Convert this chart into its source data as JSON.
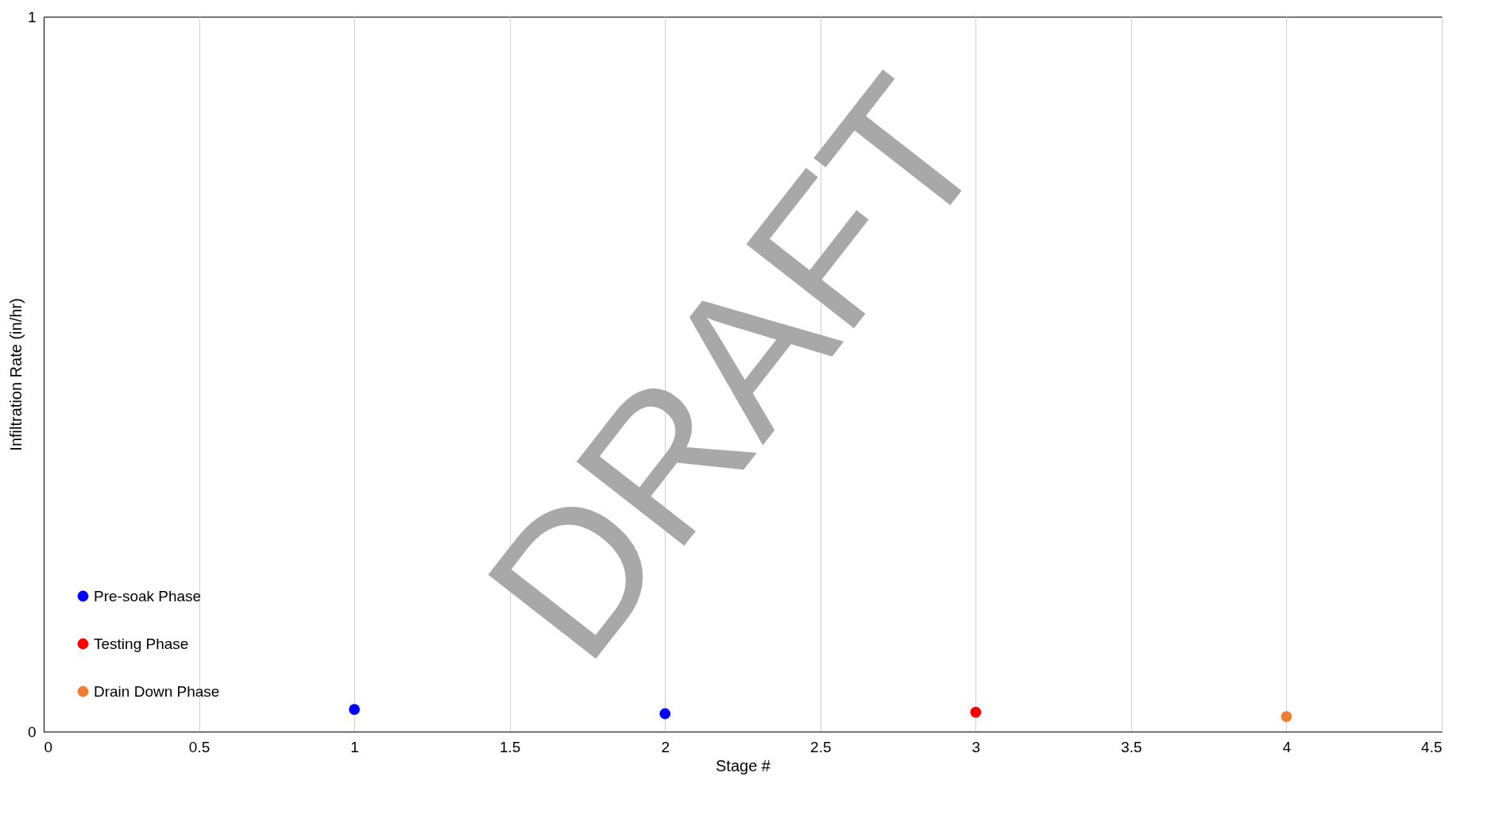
{
  "chart_data": {
    "type": "scatter",
    "xlabel": "Stage #",
    "ylabel": "Infiltration Rate (in/hr)",
    "xlim": [
      0,
      4.5
    ],
    "xticks": [
      0,
      0.5,
      1,
      1.5,
      2,
      2.5,
      3,
      3.5,
      4,
      4.5
    ],
    "ylim": [
      0,
      1
    ],
    "yticks": [
      0,
      1
    ],
    "grid": "x",
    "legend": "bottom left",
    "marker": "circle",
    "annotations": [
      "DRAFT"
    ],
    "series": [
      {
        "name": "Pre-soak Phase",
        "color": "#0000ff",
        "x": [
          1,
          2
        ],
        "values": [
          0.031,
          0.025
        ]
      },
      {
        "name": "Testing Phase",
        "color": "#ff0000",
        "x": [
          3
        ],
        "values": [
          0.027
        ]
      },
      {
        "name": "Drain Down Phase",
        "color": "#ed7d31",
        "x": [
          4
        ],
        "values": [
          0.021
        ]
      }
    ]
  }
}
